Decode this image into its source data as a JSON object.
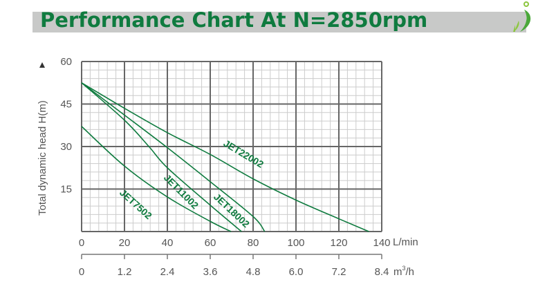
{
  "header": {
    "title": "Performance Chart At N=2850rpm"
  },
  "colors": {
    "accent": "#0f7b3f",
    "banner": "#c8c9c8",
    "grid_major": "#666666",
    "grid_minor": "#cccccc"
  },
  "logo": {
    "icon": "leaf-logo-icon"
  },
  "chart_data": {
    "type": "line",
    "title": "",
    "xlabel": "L/min",
    "ylabel": "Total dynamic head H(m)",
    "xlim": [
      0,
      140
    ],
    "ylim": [
      0,
      60
    ],
    "grid": true,
    "x_ticks": [
      "0",
      "20",
      "40",
      "60",
      "80",
      "100",
      "120",
      "140"
    ],
    "y_ticks": [
      "15",
      "30",
      "45",
      "60"
    ],
    "secondary_x": {
      "label": "m³/h",
      "unit_base": "m",
      "unit_sup": "3",
      "unit_tail": "/h",
      "ticks": [
        "0",
        "1.2",
        "2.4",
        "3.6",
        "4.8",
        "6.0",
        "7.2",
        "8.4"
      ]
    },
    "series": [
      {
        "name": "JET22002",
        "x": [
          0,
          20,
          40,
          60,
          80,
          100,
          120,
          134
        ],
        "y": [
          52.5,
          43.5,
          34.9,
          27.2,
          18.6,
          11.1,
          4.5,
          0
        ]
      },
      {
        "name": "JET18002",
        "x": [
          0,
          20,
          40,
          60,
          80,
          85.4
        ],
        "y": [
          52.5,
          41.1,
          29.6,
          17.6,
          5.3,
          0
        ]
      },
      {
        "name": "JET11002",
        "x": [
          0,
          20,
          31.4,
          40,
          60,
          74.6
        ],
        "y": [
          52.5,
          39.3,
          30,
          22.5,
          9.3,
          0
        ]
      },
      {
        "name": "JET7502",
        "x": [
          0,
          20,
          40,
          60,
          69.7
        ],
        "y": [
          37.1,
          23.1,
          12.2,
          3.6,
          0
        ]
      }
    ]
  }
}
